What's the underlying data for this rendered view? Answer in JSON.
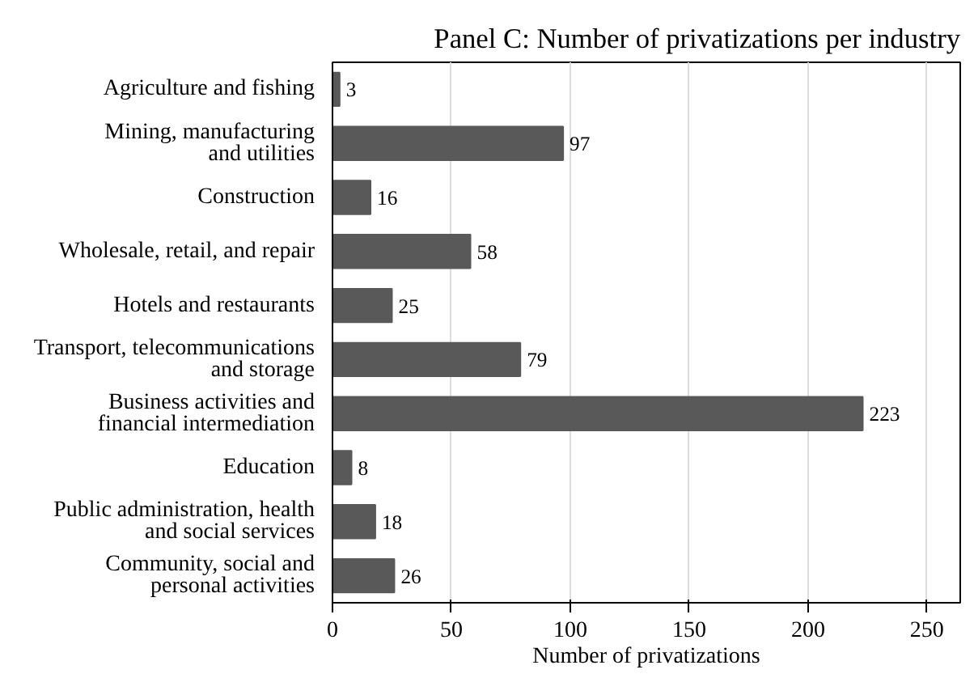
{
  "chart_data": {
    "type": "bar",
    "orientation": "horizontal",
    "title": "Panel C: Number of privatizations per industry",
    "xlabel": "Number of privatizations",
    "categories": [
      "Agriculture and fishing",
      "Mining, manufacturing\nand utilities",
      "Construction",
      "Wholesale, retail, and repair",
      "Hotels and restaurants",
      "Transport, telecommunications\nand storage",
      "Business activities and\nfinancial intermediation",
      "Education",
      "Public administration, health\nand social services",
      "Community, social and\npersonal activities"
    ],
    "values": [
      3,
      97,
      16,
      58,
      25,
      79,
      223,
      8,
      18,
      26
    ],
    "color": "#595959",
    "xlim": [
      0,
      264
    ],
    "xticks": [
      0,
      50,
      100,
      150,
      200,
      250
    ],
    "grid": "x",
    "data_labels": true
  }
}
